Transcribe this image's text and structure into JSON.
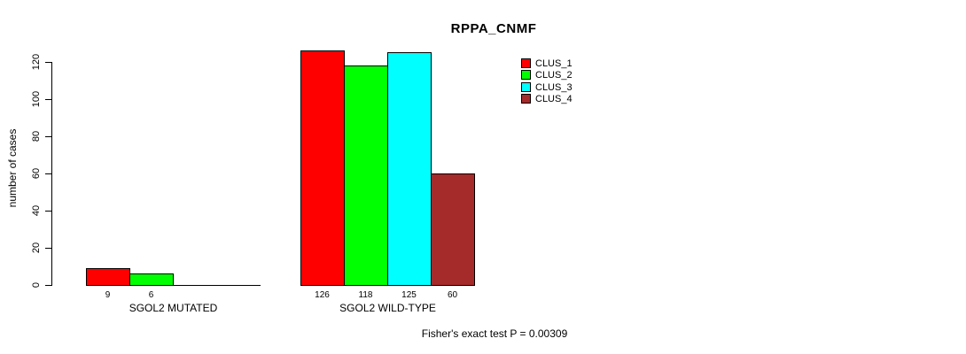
{
  "chart_data": {
    "type": "bar",
    "title": "RPPA_CNMF",
    "ylabel": "number of cases",
    "xlabel": "",
    "ylim": [
      0,
      120
    ],
    "y_ticks": [
      0,
      20,
      40,
      60,
      80,
      100,
      120
    ],
    "grid": false,
    "legend_position": "top-right",
    "clusters": [
      {
        "name": "CLUS_1",
        "color": "#FF0000"
      },
      {
        "name": "CLUS_2",
        "color": "#00FF00"
      },
      {
        "name": "CLUS_3",
        "color": "#00FFFF"
      },
      {
        "name": "CLUS_4",
        "color": "#A52A2A"
      }
    ],
    "groups": [
      {
        "label": "SGOL2 MUTATED",
        "bars": [
          {
            "cluster": "CLUS_1",
            "value": 9
          },
          {
            "cluster": "CLUS_2",
            "value": 6
          }
        ]
      },
      {
        "label": "SGOL2 WILD-TYPE",
        "bars": [
          {
            "cluster": "CLUS_1",
            "value": 126
          },
          {
            "cluster": "CLUS_2",
            "value": 118
          },
          {
            "cluster": "CLUS_3",
            "value": 125
          },
          {
            "cluster": "CLUS_4",
            "value": 60
          }
        ]
      }
    ],
    "footnote": "Fisher's exact test P = 0.00309"
  }
}
